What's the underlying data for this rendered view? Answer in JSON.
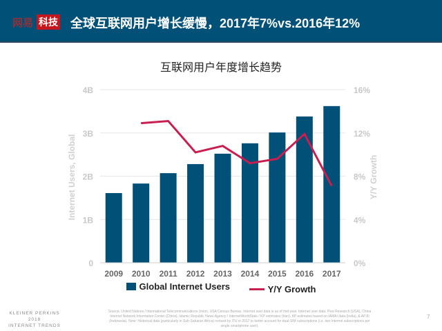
{
  "header": {
    "logo_part1": "网易",
    "logo_part2": "科技",
    "title": "全球互联网用户增长缓慢，2017年7%vs.2016年12%"
  },
  "footer": {
    "brand_lines": [
      "KLEINER PERKINS",
      "2018",
      "INTERNET TRENDS"
    ],
    "source": "Source: United Nations / International Telecommunications Union, USA Census Bureau. Internet user data is as of mid-year. Internet user data: Pew Research (USA), China Internet Network Information Center (China), Islamic Republic News Agency / InternetWorldStats / KP estimates (Iran), KP estimates based on IAMAI data (India), & APJII (Indonesia). Note: Historical data (particularly in Sub-Saharan Africa) revised by ITU in 2017 to better account for dual-SIM subscriptions (i.e. two Internet subscriptions per single smartphone user).",
    "page": "7"
  },
  "chart_data": {
    "type": "bar+line",
    "title": "互联网用户年度增长趋势",
    "categories": [
      "2009",
      "2010",
      "2011",
      "2012",
      "2013",
      "2014",
      "2015",
      "2016",
      "2017"
    ],
    "ylabel": "Internet Users, Global",
    "y2label": "Y/Y Growth",
    "ylim": [
      0,
      4
    ],
    "yticks": [
      "0",
      "1B",
      "2B",
      "3B",
      "4B"
    ],
    "y2lim": [
      0,
      16
    ],
    "y2ticks": [
      "0%",
      "4%",
      "8%",
      "12%",
      "16%"
    ],
    "grid": true,
    "legend": "bottom",
    "colors": {
      "bars": "#005078",
      "line": "#c81e50"
    },
    "series": [
      {
        "name": "Global Internet Users",
        "type": "bar",
        "axis": "left",
        "values": [
          1.61,
          1.83,
          2.07,
          2.28,
          2.52,
          2.76,
          3.01,
          3.38,
          3.62
        ]
      },
      {
        "name": "Y/Y Growth",
        "type": "line",
        "axis": "right",
        "values": [
          null,
          12.9,
          13.1,
          10.2,
          10.8,
          9.2,
          9.6,
          11.9,
          7.1
        ]
      }
    ]
  }
}
